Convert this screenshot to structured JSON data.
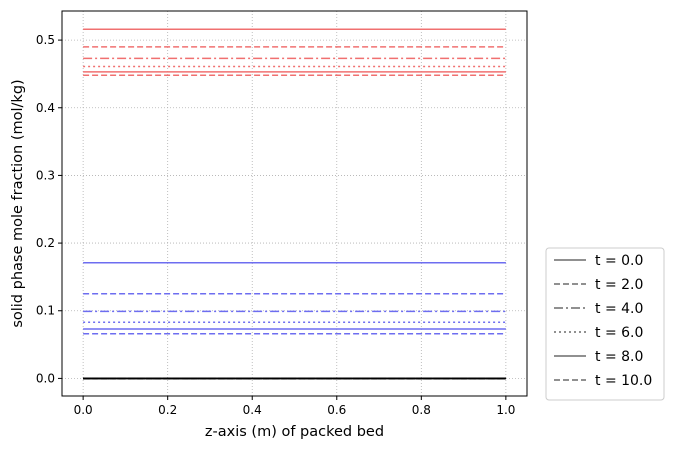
{
  "chart_data": {
    "type": "line",
    "title": "",
    "xlabel": "z-axis (m) of packed bed",
    "ylabel": "solid phase mole fraction (mol/kg)",
    "xlim": [
      -0.05,
      1.05
    ],
    "ylim": [
      -0.026,
      0.543
    ],
    "xticks": [
      0.0,
      0.2,
      0.4,
      0.6,
      0.8,
      1.0
    ],
    "xtick_labels": [
      "0.0",
      "0.2",
      "0.4",
      "0.6",
      "0.8",
      "1.0"
    ],
    "yticks": [
      0.0,
      0.1,
      0.2,
      0.3,
      0.4,
      0.5
    ],
    "ytick_labels": [
      "0.0",
      "0.1",
      "0.2",
      "0.3",
      "0.4",
      "0.5"
    ],
    "grid": true,
    "legend_position": "outside-right-bottom",
    "x": [
      0.0,
      1.0
    ],
    "colors": {
      "red": "#f07070",
      "blue": "#6d6df0",
      "black": "#000000",
      "legend": "#808080"
    },
    "legend": [
      {
        "label": "t = 0.0",
        "style": "solid"
      },
      {
        "label": "t = 2.0",
        "style": "dashed"
      },
      {
        "label": "t = 4.0",
        "style": "dashdot"
      },
      {
        "label": "t = 6.0",
        "style": "dotted"
      },
      {
        "label": "t = 8.0",
        "style": "solid"
      },
      {
        "label": "t = 10.0",
        "style": "dashed"
      }
    ],
    "series": [
      {
        "group": "red",
        "color": "#f07070",
        "style": "solid",
        "values": [
          0.516,
          0.516
        ]
      },
      {
        "group": "red",
        "color": "#f07070",
        "style": "dashed",
        "values": [
          0.49,
          0.49
        ]
      },
      {
        "group": "red",
        "color": "#f07070",
        "style": "dashdot",
        "values": [
          0.473,
          0.473
        ]
      },
      {
        "group": "red",
        "color": "#f07070",
        "style": "dotted",
        "values": [
          0.461,
          0.461
        ]
      },
      {
        "group": "red",
        "color": "#f07070",
        "style": "solid",
        "values": [
          0.453,
          0.453
        ]
      },
      {
        "group": "red",
        "color": "#f07070",
        "style": "dashed",
        "values": [
          0.448,
          0.448
        ]
      },
      {
        "group": "blue",
        "color": "#6d6df0",
        "style": "solid",
        "values": [
          0.171,
          0.171
        ]
      },
      {
        "group": "blue",
        "color": "#6d6df0",
        "style": "dashed",
        "values": [
          0.125,
          0.125
        ]
      },
      {
        "group": "blue",
        "color": "#6d6df0",
        "style": "dashdot",
        "values": [
          0.099,
          0.099
        ]
      },
      {
        "group": "blue",
        "color": "#6d6df0",
        "style": "dotted",
        "values": [
          0.083,
          0.083
        ]
      },
      {
        "group": "blue",
        "color": "#6d6df0",
        "style": "solid",
        "values": [
          0.073,
          0.073
        ]
      },
      {
        "group": "blue",
        "color": "#6d6df0",
        "style": "dashed",
        "values": [
          0.066,
          0.066
        ]
      },
      {
        "group": "black",
        "color": "#000000",
        "style": "solid",
        "values": [
          0.0,
          0.0
        ]
      },
      {
        "group": "black",
        "color": "#000000",
        "style": "dashed",
        "values": [
          0.0,
          0.0
        ]
      },
      {
        "group": "black",
        "color": "#000000",
        "style": "dashdot",
        "values": [
          0.0,
          0.0
        ]
      },
      {
        "group": "black",
        "color": "#000000",
        "style": "dotted",
        "values": [
          0.0,
          0.0
        ]
      },
      {
        "group": "black",
        "color": "#000000",
        "style": "solid",
        "values": [
          0.0,
          0.0
        ]
      },
      {
        "group": "black",
        "color": "#000000",
        "style": "dashed",
        "values": [
          0.0,
          0.0
        ]
      }
    ]
  }
}
